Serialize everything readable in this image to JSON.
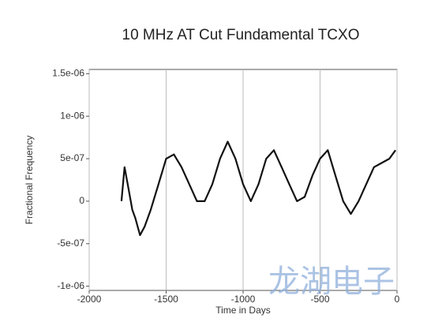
{
  "chart_data": {
    "type": "line",
    "title": "10 MHz AT Cut Fundamental TCXO",
    "xlabel": "Time in Days",
    "ylabel": "Fractional Frequency",
    "watermark": "龙湖电子",
    "x": [
      -1790,
      -1770,
      -1750,
      -1720,
      -1700,
      -1670,
      -1640,
      -1600,
      -1550,
      -1500,
      -1450,
      -1400,
      -1350,
      -1300,
      -1250,
      -1200,
      -1150,
      -1100,
      -1050,
      -1000,
      -950,
      -900,
      -850,
      -800,
      -750,
      -700,
      -650,
      -600,
      -550,
      -500,
      -450,
      -400,
      -350,
      -300,
      -250,
      -200,
      -150,
      -100,
      -50,
      -10
    ],
    "series": [
      {
        "name": "TCXO",
        "color": "#111111",
        "values": [
          0,
          4e-07,
          2e-07,
          -1e-07,
          -2e-07,
          -4e-07,
          -3e-07,
          -1e-07,
          2e-07,
          5e-07,
          5.5e-07,
          4e-07,
          2e-07,
          0,
          0,
          2e-07,
          5e-07,
          7e-07,
          5e-07,
          2e-07,
          0,
          2e-07,
          5e-07,
          6e-07,
          4e-07,
          2e-07,
          0,
          5e-08,
          3e-07,
          5e-07,
          6e-07,
          3e-07,
          0,
          -1.5e-07,
          0,
          2e-07,
          4e-07,
          4.5e-07,
          5e-07,
          6e-07
        ]
      }
    ],
    "xlim": [
      -2000,
      0
    ],
    "ylim": [
      -1.05e-06,
      1.55e-06
    ],
    "xticks": [
      -2000,
      -1500,
      -1000,
      -500,
      0
    ],
    "yticks": [
      {
        "value": 1.5e-06,
        "label": "1.5e-06"
      },
      {
        "value": 1e-06,
        "label": "1e-06"
      },
      {
        "value": 5e-07,
        "label": "5e-07"
      },
      0,
      {
        "value": -5e-07,
        "label": "-5e-07"
      },
      {
        "value": -1e-06,
        "label": "-1e-06"
      }
    ],
    "grid": "x"
  }
}
